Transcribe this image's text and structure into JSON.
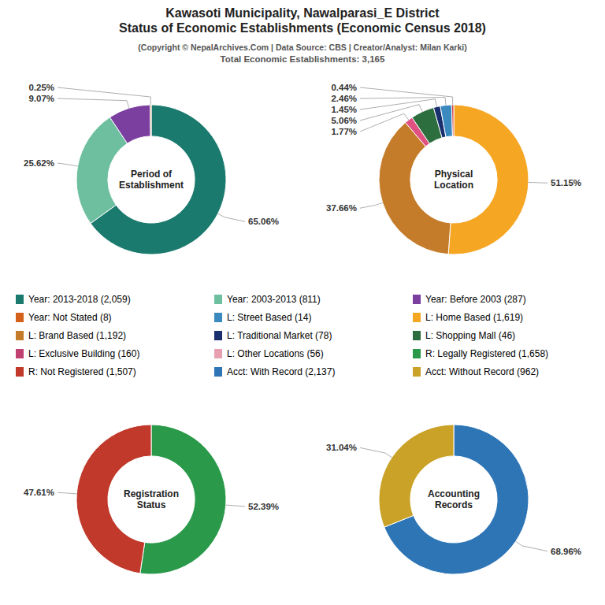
{
  "title": "Kawasoti Municipality, Nawalparasi_E District\nStatus of Economic Establishments (Economic Census 2018)",
  "subtitle": [
    "(Copyright © NepalArchives.Com | Data Source: CBS | Creator/Analyst: Milan Karki)",
    "Total Economic Establishments: 3,165"
  ],
  "chart_data": [
    {
      "type": "pie",
      "title": "Period of\nEstablishment",
      "values": [
        65.06,
        25.62,
        9.07,
        0.25
      ],
      "value_labels": [
        "65.06%",
        "25.62%",
        "9.07%",
        "0.25%"
      ],
      "colors": [
        "#1a7a6e",
        "#6dbfa0",
        "#7b3fa0",
        "#d4601a"
      ],
      "data_labels": true
    },
    {
      "type": "pie",
      "title": "Physical\nLocation",
      "values": [
        51.15,
        37.66,
        1.77,
        5.06,
        1.45,
        2.46,
        0.44
      ],
      "value_labels": [
        "51.15%",
        "37.66%",
        "1.77%",
        "5.06%",
        "1.45%",
        "2.46%",
        "0.44%"
      ],
      "colors": [
        "#f5a623",
        "#c47c2a",
        "#e05080",
        "#2d6e3e",
        "#1a2f6e",
        "#3a8abf",
        "#d44040"
      ],
      "data_labels": true
    },
    {
      "type": "pie",
      "title": "Registration\nStatus",
      "values": [
        52.39,
        47.61
      ],
      "value_labels": [
        "52.39%",
        "47.61%"
      ],
      "colors": [
        "#2a9a4a",
        "#c0392b"
      ],
      "data_labels": true
    },
    {
      "type": "pie",
      "title": "Accounting\nRecords",
      "values": [
        68.96,
        31.04
      ],
      "value_labels": [
        "68.96%",
        "31.04%"
      ],
      "colors": [
        "#2e75b6",
        "#c9a227"
      ],
      "data_labels": true
    },
    {
      "type": "legend",
      "categories": [
        "Year: 2013-2018 (2,059)",
        "Year: 2003-2013 (811)",
        "Year: Before 2003 (287)",
        "Year: Not Stated (8)",
        "L: Street Based (14)",
        "L: Home Based (1,619)",
        "L: Brand Based (1,192)",
        "L: Traditional Market (78)",
        "L: Shopping Mall (46)",
        "L: Exclusive Building (160)",
        "L: Other Locations (56)",
        "R: Legally Registered (1,658)",
        "R: Not Registered (1,507)",
        "Acct: With Record (2,137)",
        "Acct: Without Record (962)"
      ],
      "colors": [
        "#1a7a6e",
        "#6dbfa0",
        "#7b3fa0",
        "#d4601a",
        "#3a8abf",
        "#f5a623",
        "#c47c2a",
        "#1a2f6e",
        "#2d6e3e",
        "#c04070",
        "#e8a0b0",
        "#2a9a4a",
        "#c0392b",
        "#2e75b6",
        "#c9a227"
      ]
    }
  ]
}
